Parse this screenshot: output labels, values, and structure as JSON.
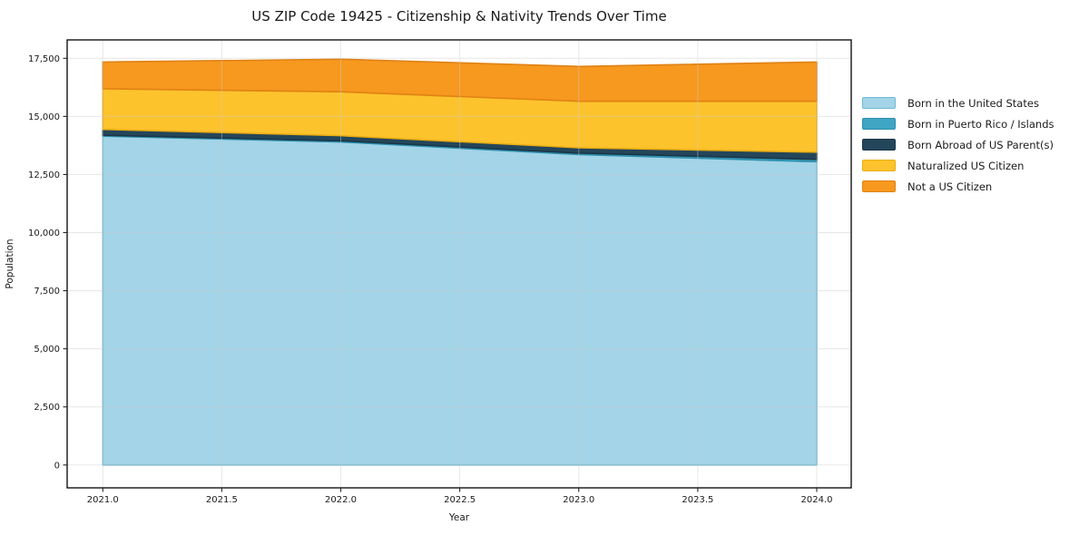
{
  "chart_data": {
    "type": "area",
    "stacked": true,
    "title": "US ZIP Code 19425 - Citizenship & Nativity Trends Over Time",
    "xlabel": "Year",
    "ylabel": "Population",
    "x": [
      2021,
      2022,
      2023,
      2024
    ],
    "xlim": [
      2021.0,
      2024.0
    ],
    "ylim": [
      0,
      17500
    ],
    "grid": true,
    "grid_color": "#cccccc",
    "frame_color": "#000000",
    "tick_color": "#262626",
    "legend_position": "right-outside",
    "xticks": [
      {
        "value": 2021.0,
        "label": "2021.0"
      },
      {
        "value": 2021.5,
        "label": "2021.5"
      },
      {
        "value": 2022.0,
        "label": "2022.0"
      },
      {
        "value": 2022.5,
        "label": "2022.5"
      },
      {
        "value": 2023.0,
        "label": "2023.0"
      },
      {
        "value": 2023.5,
        "label": "2023.5"
      },
      {
        "value": 2024.0,
        "label": "2024.0"
      }
    ],
    "yticks": [
      {
        "value": 0,
        "label": "0"
      },
      {
        "value": 2500,
        "label": "2,500"
      },
      {
        "value": 5000,
        "label": "5,000"
      },
      {
        "value": 7500,
        "label": "7,500"
      },
      {
        "value": 10000,
        "label": "10,000"
      },
      {
        "value": 12500,
        "label": "12,500"
      },
      {
        "value": 15000,
        "label": "15,000"
      },
      {
        "value": 17500,
        "label": "17,500"
      }
    ],
    "series": [
      {
        "id": "born-us",
        "name": "Born in the United States",
        "color": "#A3D4E8",
        "edge_color": "#6FB9D8",
        "values": [
          14150,
          13900,
          13360,
          13050
        ]
      },
      {
        "id": "born-pr-islands",
        "name": "Born in Puerto Rico / Islands",
        "color": "#3FA5C4",
        "edge_color": "#2E8FAD",
        "values": [
          40,
          50,
          60,
          100
        ]
      },
      {
        "id": "born-abroad",
        "name": "Born Abroad of US Parent(s)",
        "color": "#24465A",
        "edge_color": "#1A3647",
        "values": [
          250,
          220,
          230,
          310
        ]
      },
      {
        "id": "naturalized",
        "name": "Naturalized US Citizen",
        "color": "#FDC32D",
        "edge_color": "#EAAC13",
        "values": [
          1750,
          1890,
          2000,
          2190
        ]
      },
      {
        "id": "not-citizen",
        "name": "Not a US Citizen",
        "color": "#F7981F",
        "edge_color": "#E08214",
        "values": [
          1150,
          1400,
          1500,
          1690
        ]
      }
    ]
  }
}
